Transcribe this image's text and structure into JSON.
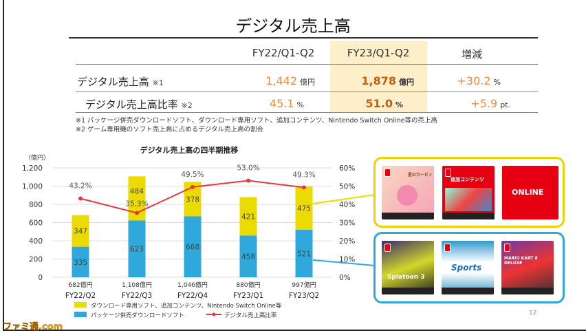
{
  "title": "デジタル売上高",
  "table": {
    "headers": [
      "FY22/Q1-Q2",
      "FY23/Q1-Q2",
      "増減"
    ],
    "rows": [
      {
        "label": "デジタル売上高",
        "note": "※1",
        "fy22": "1,442",
        "fy22_unit": "億円",
        "fy23": "1,878",
        "fy23_unit": "億円",
        "change": "+30.2",
        "change_unit": "%"
      },
      {
        "label": "デジタル売上高比率",
        "note": "※2",
        "fy22": "45.1",
        "fy22_unit": "%",
        "fy23": "51.0",
        "fy23_unit": "%",
        "change": "+5.9",
        "change_unit": "pt."
      }
    ],
    "footnotes": [
      "※1 パッケージ併売ダウンロードソフト、ダウンロード専用ソフト、追加コンテンツ、Nintendo Switch Online等の売上高",
      "※2 ゲーム専用機のソフト売上高に占めるデジタル売上高の割合"
    ]
  },
  "chart_data": {
    "type": "bar",
    "stacked": true,
    "title": "デジタル売上高の四半期推移",
    "ylabel": "（億円）",
    "ylim": [
      0,
      1200
    ],
    "y_ticks": [
      "0",
      "200",
      "400",
      "600",
      "800",
      "1,000",
      "1,200"
    ],
    "y2lim": [
      0,
      60
    ],
    "y2_ticks": [
      "0%",
      "10%",
      "20%",
      "30%",
      "40%",
      "50%",
      "60%"
    ],
    "grid": true,
    "categories": [
      "FY22/Q2",
      "FY22/Q3",
      "FY22/Q4",
      "FY23/Q1",
      "FY23/Q2"
    ],
    "totals": [
      "682億円",
      "1,108億円",
      "1,046億円",
      "880億円",
      "997億円"
    ],
    "series": [
      {
        "name": "パッケージ併売ダウンロードソフト",
        "color": "#2fa8dc",
        "values": [
          335,
          623,
          668,
          458,
          521
        ]
      },
      {
        "name": "ダウンロード専用ソフト、追加コンテンツ、Nintendo Switch Online等",
        "color": "#ecdb00",
        "values": [
          347,
          484,
          378,
          421,
          475
        ]
      }
    ],
    "line": {
      "name": "デジタル売上高比率",
      "color": "#e8383d",
      "axis": "right",
      "values": [
        43.2,
        35.3,
        49.5,
        53.0,
        49.3
      ],
      "labels": [
        "43.2%",
        "35.3%",
        "49.5%",
        "53.0%",
        "49.3%"
      ]
    },
    "legend_position": "bottom"
  },
  "products": {
    "download_only": [
      "星のカービィ",
      "追加コンテンツ",
      "ONLINE"
    ],
    "package": [
      "Splatoon 3",
      "Sports",
      "MARIO KART 8 DELUXE"
    ],
    "download_label": "追加コンテンツ",
    "online_label": "ONLINE"
  },
  "page_number": "12",
  "watermark": "ファミ通.com"
}
